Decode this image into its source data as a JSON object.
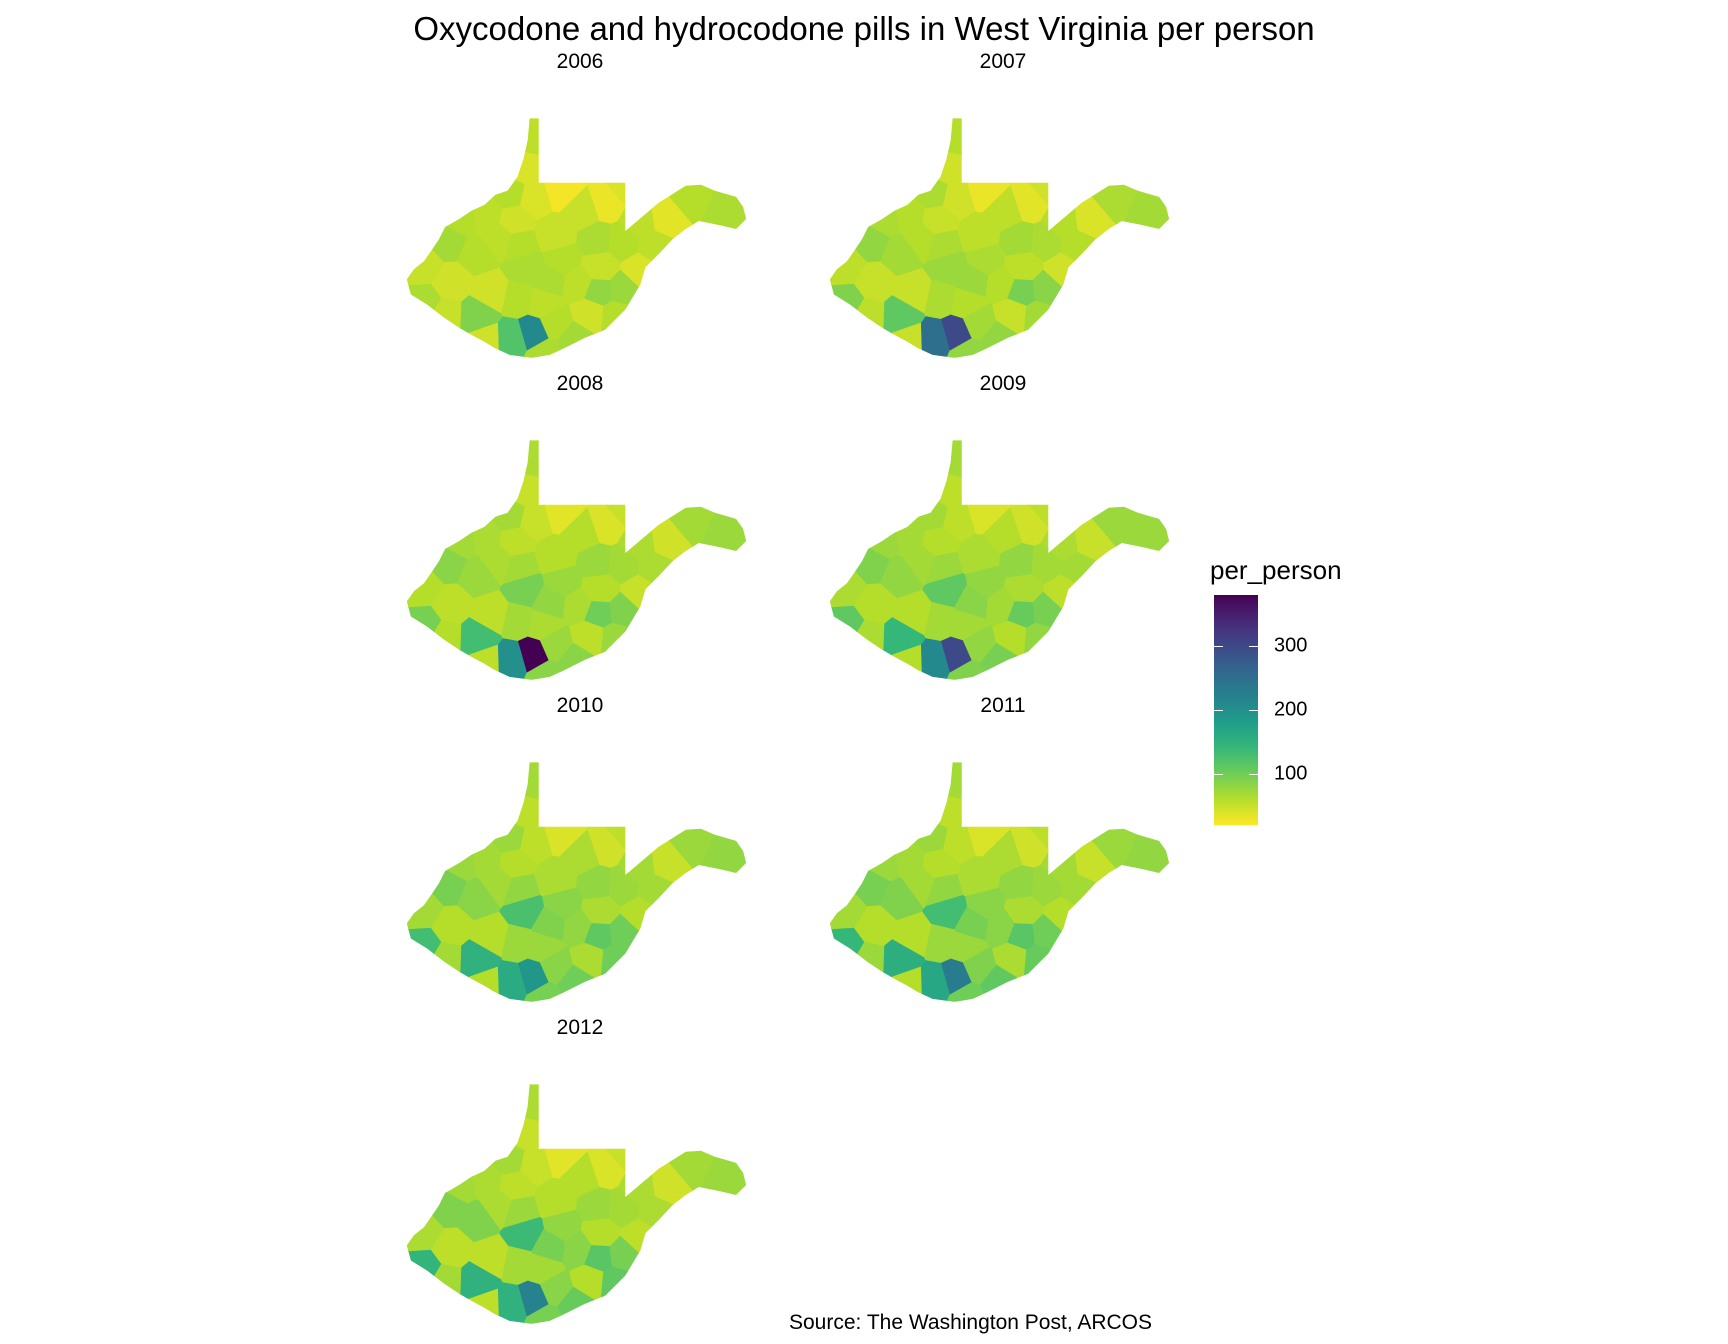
{
  "title": "Oxycodone and hydrocodone pills in West Virginia per person",
  "caption": "Source: The Washington Post, ARCOS",
  "legend": {
    "title": "per_person",
    "min": 20,
    "max": 380,
    "ticks": [
      {
        "label": "300",
        "value": 300
      },
      {
        "label": "200",
        "value": 200
      },
      {
        "label": "100",
        "value": 100
      }
    ],
    "colors": [
      "#fde725",
      "#b5de2b",
      "#6ece58",
      "#35b779",
      "#1f9e89",
      "#26828e",
      "#31688e",
      "#3e4989",
      "#482878",
      "#440154"
    ]
  },
  "panels": [
    {
      "year": "2006",
      "values": [
        55,
        60,
        65,
        40,
        40,
        35,
        30,
        25,
        55,
        50,
        40,
        60,
        55,
        60,
        65,
        45,
        50,
        55,
        40,
        60,
        50,
        55,
        60,
        60,
        75,
        70,
        65,
        55,
        60,
        80,
        65,
        60,
        45,
        50,
        55,
        60,
        45,
        45,
        60,
        70,
        90,
        210,
        65,
        50,
        120,
        65,
        45
      ]
    },
    {
      "year": "2007",
      "values": [
        60,
        65,
        70,
        45,
        45,
        40,
        35,
        30,
        60,
        55,
        45,
        65,
        60,
        65,
        70,
        50,
        55,
        60,
        45,
        65,
        55,
        60,
        65,
        65,
        85,
        80,
        75,
        60,
        70,
        95,
        75,
        70,
        50,
        55,
        60,
        65,
        50,
        50,
        70,
        80,
        110,
        300,
        90,
        55,
        250,
        80,
        50
      ]
    },
    {
      "year": "2008",
      "values": [
        65,
        70,
        75,
        50,
        50,
        45,
        40,
        35,
        65,
        60,
        50,
        70,
        65,
        70,
        75,
        55,
        60,
        65,
        50,
        70,
        60,
        65,
        70,
        75,
        90,
        85,
        95,
        65,
        75,
        100,
        80,
        75,
        55,
        60,
        65,
        70,
        55,
        55,
        75,
        85,
        130,
        380,
        95,
        60,
        200,
        85,
        55
      ]
    },
    {
      "year": "2009",
      "values": [
        70,
        75,
        75,
        55,
        55,
        50,
        45,
        40,
        65,
        60,
        55,
        70,
        70,
        70,
        80,
        60,
        65,
        70,
        55,
        75,
        65,
        70,
        75,
        80,
        95,
        90,
        110,
        70,
        80,
        105,
        85,
        80,
        60,
        65,
        70,
        70,
        60,
        60,
        80,
        95,
        140,
        300,
        110,
        65,
        210,
        90,
        60
      ]
    },
    {
      "year": "2010",
      "values": [
        70,
        75,
        80,
        55,
        55,
        50,
        45,
        40,
        70,
        65,
        55,
        75,
        70,
        75,
        80,
        60,
        65,
        70,
        60,
        75,
        65,
        70,
        80,
        85,
        100,
        95,
        125,
        80,
        85,
        110,
        90,
        100,
        65,
        70,
        75,
        75,
        60,
        60,
        85,
        100,
        150,
        190,
        130,
        70,
        160,
        95,
        60
      ]
    },
    {
      "year": "2011",
      "values": [
        70,
        75,
        80,
        55,
        55,
        50,
        45,
        40,
        70,
        65,
        55,
        75,
        70,
        75,
        80,
        60,
        65,
        70,
        60,
        75,
        65,
        70,
        80,
        85,
        100,
        95,
        130,
        85,
        90,
        115,
        95,
        105,
        65,
        70,
        75,
        75,
        60,
        60,
        90,
        110,
        155,
        230,
        140,
        75,
        165,
        100,
        60
      ]
    },
    {
      "year": "2012",
      "values": [
        65,
        70,
        75,
        50,
        50,
        45,
        40,
        35,
        65,
        60,
        50,
        70,
        65,
        70,
        75,
        55,
        60,
        65,
        55,
        70,
        60,
        65,
        75,
        80,
        95,
        90,
        135,
        85,
        90,
        115,
        95,
        110,
        60,
        65,
        70,
        70,
        55,
        55,
        85,
        105,
        150,
        220,
        145,
        70,
        150,
        95,
        55
      ]
    }
  ]
}
